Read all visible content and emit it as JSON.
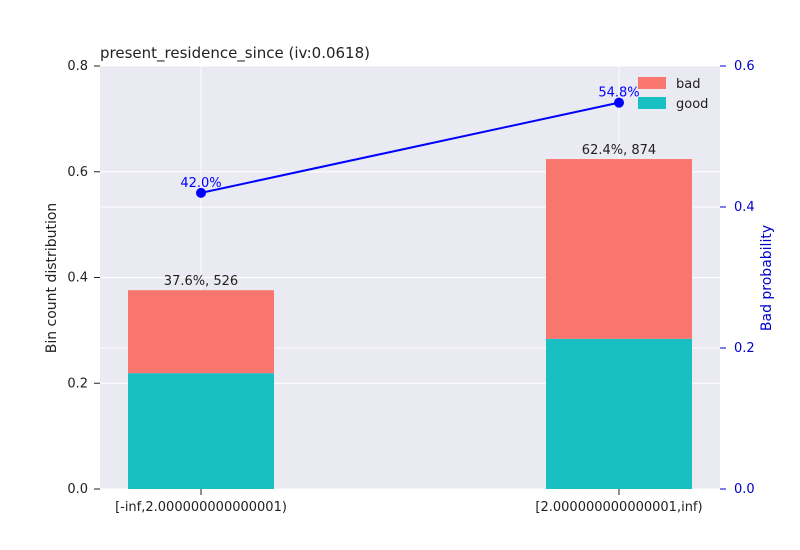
{
  "chart_data": {
    "type": "bar",
    "title": "present_residence_since  (iv:0.0618)",
    "categories": [
      "[-inf,2.000000000000001)",
      "[2.000000000000001,inf)"
    ],
    "series": [
      {
        "name": "good",
        "values": [
          0.219,
          0.284
        ],
        "color": "#18c0c4"
      },
      {
        "name": "bad",
        "values": [
          0.157,
          0.34
        ],
        "color": "#f8766d"
      }
    ],
    "bar_labels": [
      "37.6%, 526",
      "62.4%, 874"
    ],
    "line": {
      "values": [
        0.42,
        0.548
      ],
      "labels": [
        "42.0%",
        "54.8%"
      ],
      "color": "#0000ff"
    },
    "ylabel": "Bin count distribution",
    "ylim": [
      0,
      0.8
    ],
    "yticks": [
      "0.0",
      "0.2",
      "0.4",
      "0.6",
      "0.8"
    ],
    "y2label": "Bad probability",
    "y2lim": [
      0,
      0.6
    ],
    "y2ticks": [
      "0.0",
      "0.2",
      "0.4",
      "0.6"
    ],
    "legend": {
      "position": "top-right",
      "entries": [
        "bad",
        "good"
      ]
    },
    "grid": true,
    "colors": {
      "background": "#eaeaf2",
      "grid": "#ffffff",
      "axis2": "#0000cc"
    }
  }
}
